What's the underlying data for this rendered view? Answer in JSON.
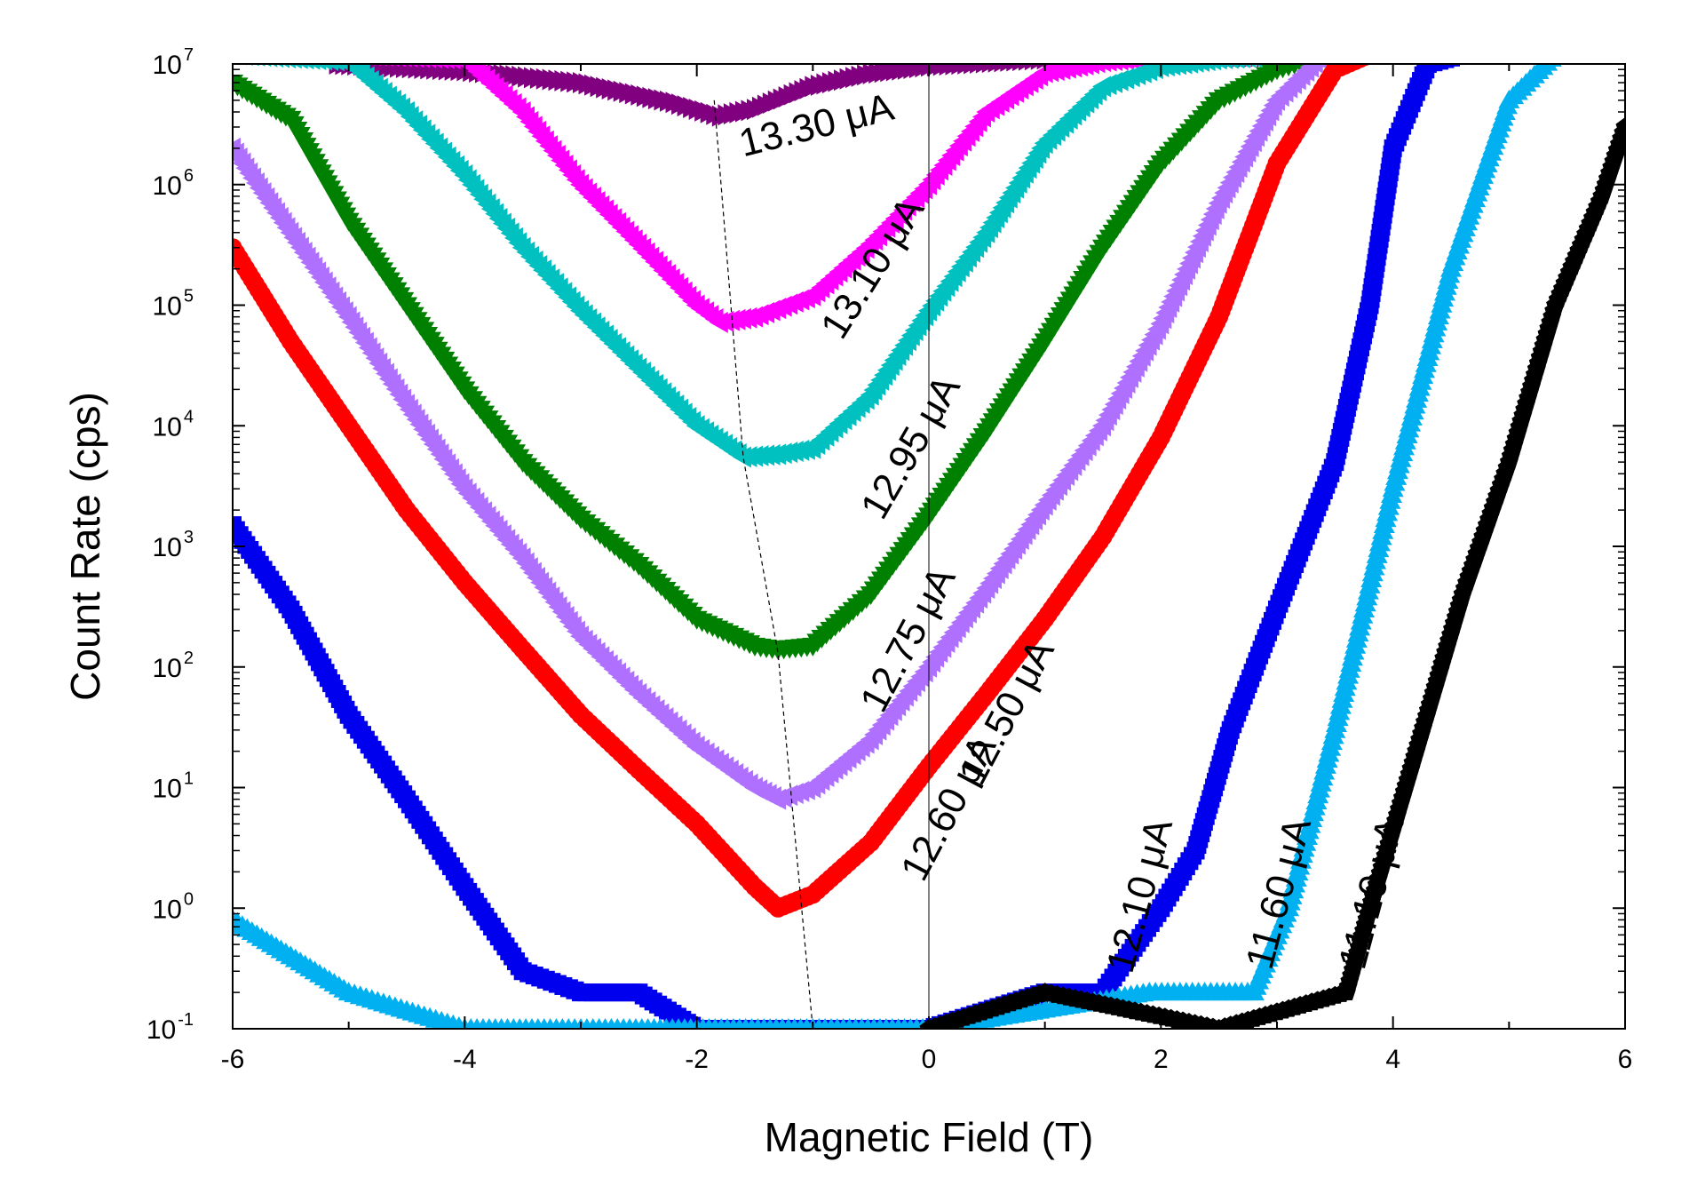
{
  "chart_data": {
    "type": "scatter",
    "title": "",
    "xlabel": "Magnetic Field (T)",
    "ylabel": "Count Rate (cps)",
    "xscale": "linear",
    "yscale": "log",
    "xlim": [
      -6,
      6
    ],
    "ylim": [
      0.1,
      10000000
    ],
    "x_ticks": [
      -6,
      -4,
      -2,
      0,
      2,
      4,
      6
    ],
    "x_tick_labels": [
      "-6",
      "-4",
      "-2",
      "0",
      "2",
      "4",
      "6"
    ],
    "y_tick_exponents": [
      -1,
      0,
      1,
      2,
      3,
      4,
      5,
      6,
      7
    ],
    "y_tick_base": "10",
    "vertical_reference_line_x": 0,
    "minimum_guide_line": {
      "style": "dashed",
      "points": [
        [
          -1.85,
          5000000
        ],
        [
          -1.6,
          5500
        ],
        [
          -1.3,
          130
        ],
        [
          -1.0,
          0.1
        ]
      ]
    },
    "series": [
      {
        "name": "13.30 μA",
        "label": "13.30 μA",
        "color": "#800080",
        "marker": "triangle-right",
        "points": [
          [
            -5.1,
            10000000
          ],
          [
            -4,
            8800000
          ],
          [
            -3,
            7000000
          ],
          [
            -2.2,
            4800000
          ],
          [
            -1.8,
            3700000
          ],
          [
            -1.5,
            4200000
          ],
          [
            -1.0,
            6500000
          ],
          [
            -0.5,
            8300000
          ],
          [
            0,
            9600000
          ],
          [
            1,
            11000000
          ],
          [
            2,
            11500000
          ],
          [
            3,
            11500000
          ],
          [
            3.5,
            11500000
          ]
        ],
        "label_x": -1.6,
        "label_y": 1700000,
        "label_angle": -14
      },
      {
        "name": "13.10 μA",
        "label": "13.10 μA",
        "color": "#ff00ff",
        "marker": "triangle-left",
        "points": [
          [
            -6,
            12000000
          ],
          [
            -5,
            12000000
          ],
          [
            -4,
            11000000
          ],
          [
            -3.5,
            4000000
          ],
          [
            -3,
            1000000
          ],
          [
            -2.5,
            320000
          ],
          [
            -2,
            100000
          ],
          [
            -1.8,
            72000
          ],
          [
            -1.5,
            80000
          ],
          [
            -1,
            120000
          ],
          [
            -0.5,
            320000
          ],
          [
            0,
            1000000
          ],
          [
            0.5,
            4000000
          ],
          [
            1,
            8500000
          ],
          [
            1.5,
            10500000
          ],
          [
            2,
            11500000
          ],
          [
            3,
            12000000
          ]
        ],
        "label_x": -0.75,
        "label_y": 50000,
        "label_angle": -58
      },
      {
        "name": "12.95 μA",
        "label": "12.95 μA",
        "color": "#00c0c0",
        "marker": "triangle-left",
        "points": [
          [
            -6,
            12000000
          ],
          [
            -5,
            10500000
          ],
          [
            -4.5,
            4000000
          ],
          [
            -4,
            1200000
          ],
          [
            -3.5,
            300000
          ],
          [
            -3,
            90000
          ],
          [
            -2.5,
            30000
          ],
          [
            -2,
            10000
          ],
          [
            -1.6,
            5500
          ],
          [
            -1.3,
            5800
          ],
          [
            -1,
            6500
          ],
          [
            -0.5,
            18000
          ],
          [
            0,
            90000
          ],
          [
            0.5,
            400000
          ],
          [
            1,
            2200000
          ],
          [
            1.5,
            6500000
          ],
          [
            2,
            9500000
          ],
          [
            2.5,
            11000000
          ],
          [
            3.2,
            12000000
          ]
        ],
        "label_x": -0.4,
        "label_y": 1600,
        "label_angle": -60
      },
      {
        "name": "12.75 μA",
        "label": "12.75 μA",
        "color": "#008000",
        "marker": "triangle-down",
        "points": [
          [
            -6,
            7000000
          ],
          [
            -5.5,
            3500000
          ],
          [
            -5,
            500000
          ],
          [
            -4.5,
            100000
          ],
          [
            -4,
            20000
          ],
          [
            -3.5,
            5000
          ],
          [
            -3,
            1700
          ],
          [
            -2.5,
            700
          ],
          [
            -2,
            250
          ],
          [
            -1.5,
            150
          ],
          [
            -1.3,
            140
          ],
          [
            -1,
            150
          ],
          [
            -0.5,
            400
          ],
          [
            0,
            1800
          ],
          [
            0.5,
            9000
          ],
          [
            1,
            50000
          ],
          [
            1.5,
            300000
          ],
          [
            2,
            1500000
          ],
          [
            2.5,
            5000000
          ],
          [
            3,
            9000000
          ],
          [
            3.4,
            12000000
          ]
        ],
        "label_x": -0.4,
        "label_y": 40,
        "label_angle": -62
      },
      {
        "name": "12.60 μA",
        "label": "12.60 μA",
        "color": "#b070ff",
        "marker": "triangle-left",
        "points": [
          [
            -6,
            2000000
          ],
          [
            -5.5,
            400000
          ],
          [
            -5,
            80000
          ],
          [
            -4.5,
            15000
          ],
          [
            -4,
            3000
          ],
          [
            -3.5,
            800
          ],
          [
            -3,
            180
          ],
          [
            -2.5,
            60
          ],
          [
            -2,
            22
          ],
          [
            -1.5,
            10
          ],
          [
            -1.3,
            8
          ],
          [
            -1,
            10
          ],
          [
            -0.5,
            25
          ],
          [
            0,
            100
          ],
          [
            0.5,
            450
          ],
          [
            1,
            2200
          ],
          [
            1.5,
            10000
          ],
          [
            2,
            70000
          ],
          [
            2.5,
            700000
          ],
          [
            3,
            5000000
          ],
          [
            3.4,
            12000000
          ]
        ],
        "label_x": -0.05,
        "label_y": 1.6,
        "label_angle": -62
      },
      {
        "name": "12.50 μA",
        "label": "12.50 μA",
        "color": "#ff0000",
        "marker": "circle",
        "points": [
          [
            -6,
            300000
          ],
          [
            -5.5,
            50000
          ],
          [
            -5,
            10000
          ],
          [
            -4.5,
            2000
          ],
          [
            -4,
            500
          ],
          [
            -3.5,
            140
          ],
          [
            -3,
            40
          ],
          [
            -2.5,
            14
          ],
          [
            -2,
            5
          ],
          [
            -1.5,
            1.5
          ],
          [
            -1.3,
            1.0
          ],
          [
            -1,
            1.3
          ],
          [
            -0.5,
            3.5
          ],
          [
            0,
            15
          ],
          [
            0.5,
            60
          ],
          [
            1,
            250
          ],
          [
            1.5,
            1200
          ],
          [
            2,
            8000
          ],
          [
            2.5,
            80000
          ],
          [
            3,
            1500000
          ],
          [
            3.5,
            9000000
          ],
          [
            3.8,
            12000000
          ]
        ],
        "label_x": 0.45,
        "label_y": 10,
        "label_angle": -62
      },
      {
        "name": "12.10 μA",
        "label": "12.10 μA",
        "color": "#0000ee",
        "marker": "square",
        "points": [
          [
            -6,
            1500
          ],
          [
            -5.5,
            300
          ],
          [
            -5,
            40
          ],
          [
            -4.5,
            8
          ],
          [
            -4,
            1.5
          ],
          [
            -3.5,
            0.3
          ],
          [
            -3,
            0.2
          ],
          [
            -2.5,
            0.2
          ],
          [
            -2,
            0.1
          ],
          [
            -1,
            0.1
          ],
          [
            0,
            0.1
          ],
          [
            1,
            0.2
          ],
          [
            1.5,
            0.2
          ],
          [
            2,
            1.0
          ],
          [
            2.3,
            3
          ],
          [
            2.6,
            30
          ],
          [
            3,
            300
          ],
          [
            3.5,
            5000
          ],
          [
            3.8,
            100000
          ],
          [
            4,
            2000000
          ],
          [
            4.3,
            10000000
          ],
          [
            4.6,
            12000000
          ]
        ],
        "label_x": 1.75,
        "label_y": 0.28,
        "label_angle": -75
      },
      {
        "name": "11.60 μA",
        "label": "11.60 μA",
        "color": "#00b0f0",
        "marker": "triangle-up",
        "points": [
          [
            -6,
            0.8
          ],
          [
            -5.5,
            0.4
          ],
          [
            -5,
            0.2
          ],
          [
            -4,
            0.1
          ],
          [
            -2,
            0.1
          ],
          [
            0,
            0.1
          ],
          [
            1.9,
            0.2
          ],
          [
            2.8,
            0.2
          ],
          [
            3.1,
            1
          ],
          [
            3.5,
            30
          ],
          [
            4,
            3000
          ],
          [
            4.5,
            200000
          ],
          [
            5,
            5000000
          ],
          [
            5.4,
            12000000
          ]
        ],
        "label_x": 2.95,
        "label_y": 0.3,
        "label_angle": -75
      },
      {
        "name": "11.10 μA",
        "label": "11.10 μA",
        "color": "#000000",
        "marker": "pentagon",
        "points": [
          [
            0,
            0.1
          ],
          [
            1,
            0.2
          ],
          [
            2.5,
            0.1
          ],
          [
            3.6,
            0.2
          ],
          [
            3.8,
            1
          ],
          [
            4.2,
            20
          ],
          [
            4.6,
            400
          ],
          [
            5,
            5000
          ],
          [
            5.4,
            100000
          ],
          [
            5.8,
            800000
          ],
          [
            6,
            3000000
          ]
        ],
        "label_x": 3.75,
        "label_y": 0.3,
        "label_angle": -75
      }
    ]
  }
}
